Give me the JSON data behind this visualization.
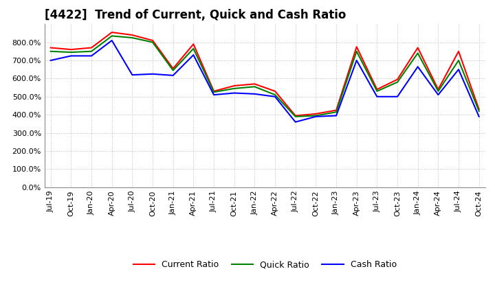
{
  "title": "[4422]  Trend of Current, Quick and Cash Ratio",
  "x_labels": [
    "Jul-19",
    "Oct-19",
    "Jan-20",
    "Apr-20",
    "Jul-20",
    "Oct-20",
    "Jan-21",
    "Apr-21",
    "Jul-21",
    "Oct-21",
    "Jan-22",
    "Apr-22",
    "Jul-22",
    "Oct-22",
    "Jan-23",
    "Apr-23",
    "Jul-23",
    "Oct-23",
    "Jan-24",
    "Apr-24",
    "Jul-24",
    "Oct-24"
  ],
  "current_ratio": [
    770,
    760,
    770,
    855,
    840,
    810,
    655,
    790,
    530,
    560,
    570,
    530,
    395,
    405,
    425,
    775,
    540,
    595,
    770,
    540,
    750,
    430
  ],
  "quick_ratio": [
    750,
    745,
    750,
    835,
    825,
    800,
    645,
    765,
    525,
    545,
    555,
    510,
    390,
    395,
    415,
    750,
    530,
    580,
    740,
    530,
    700,
    420
  ],
  "cash_ratio": [
    700,
    725,
    725,
    810,
    620,
    625,
    617,
    730,
    510,
    520,
    515,
    500,
    360,
    390,
    395,
    700,
    500,
    500,
    665,
    510,
    650,
    390
  ],
  "current_color": "#ff0000",
  "quick_color": "#008000",
  "cash_color": "#0000ff",
  "line_width": 1.5,
  "ylim": [
    0,
    900
  ],
  "yticks": [
    0,
    100,
    200,
    300,
    400,
    500,
    600,
    700,
    800
  ],
  "background_color": "#ffffff",
  "grid_color": "#bbbbbb",
  "title_fontsize": 12,
  "tick_fontsize": 8,
  "legend_fontsize": 9
}
